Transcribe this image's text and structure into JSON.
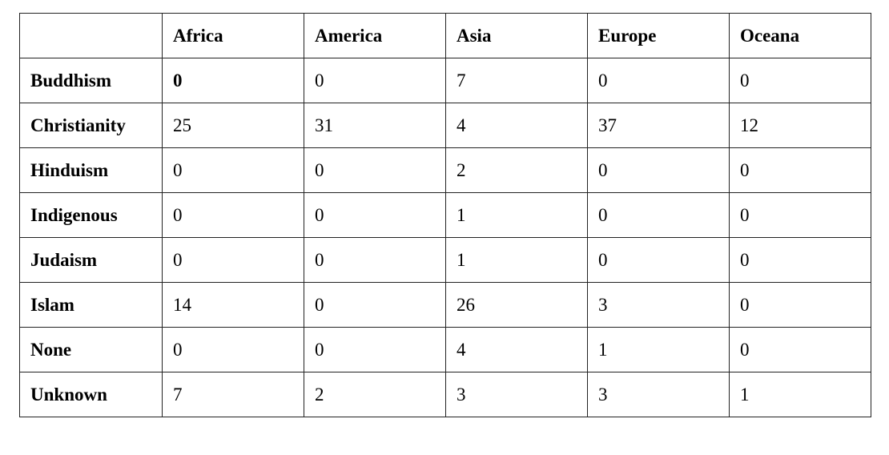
{
  "table": {
    "corner": "",
    "columns": [
      "Africa",
      "America",
      "Asia",
      "Europe",
      "Oceana"
    ],
    "rows": [
      {
        "label": "Buddhism",
        "values": [
          "0",
          "0",
          "7",
          "0",
          "0"
        ]
      },
      {
        "label": "Christianity",
        "values": [
          "25",
          "31",
          "4",
          "37",
          "12"
        ]
      },
      {
        "label": "Hinduism",
        "values": [
          "0",
          "0",
          "2",
          "0",
          "0"
        ]
      },
      {
        "label": "Indigenous",
        "values": [
          "0",
          "0",
          "1",
          "0",
          "0"
        ]
      },
      {
        "label": "Judaism",
        "values": [
          "0",
          "0",
          "1",
          "0",
          "0"
        ]
      },
      {
        "label": "Islam",
        "values": [
          "14",
          "0",
          "26",
          "3",
          "0"
        ]
      },
      {
        "label": "None",
        "values": [
          "0",
          "0",
          "4",
          "1",
          "0"
        ]
      },
      {
        "label": "Unknown",
        "values": [
          "7",
          "2",
          "3",
          "3",
          "1"
        ]
      }
    ]
  }
}
